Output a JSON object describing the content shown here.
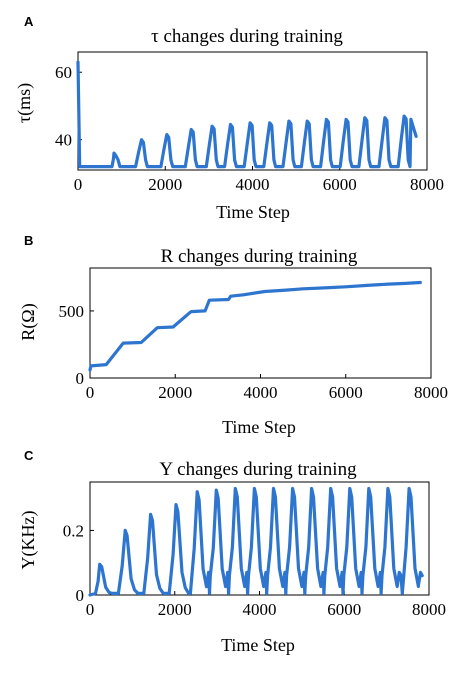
{
  "chart_data": [
    {
      "panel": "A",
      "type": "line",
      "title": "τ changes during training",
      "xlabel": "Time Step",
      "ylabel": "τ(ms)",
      "xlim": [
        0,
        8000
      ],
      "ylim": [
        31,
        66
      ],
      "xticks": [
        0,
        2000,
        4000,
        6000,
        8000
      ],
      "yticks": [
        40,
        60
      ],
      "grid": false,
      "color": "#2E75D0",
      "baseline": 32,
      "start_value": 63,
      "start_drop_step": 40,
      "peak_steps": [
        850,
        1480,
        2060,
        2620,
        3100,
        3520,
        3970,
        4420,
        4860,
        5280,
        5720,
        6170,
        6600,
        7060,
        7500
      ],
      "peak_values": [
        36,
        40,
        41.5,
        43,
        44,
        44.5,
        45,
        45,
        45.5,
        45.5,
        46,
        46,
        46.5,
        46.5,
        47
      ],
      "end_step": 7750,
      "end_value": 41
    },
    {
      "panel": "B",
      "type": "line",
      "title": "R changes during training",
      "xlabel": "Time Step",
      "ylabel": "R(Ω)",
      "xlim": [
        0,
        8000
      ],
      "ylim": [
        0,
        820
      ],
      "xticks": [
        0,
        2000,
        4000,
        6000,
        8000
      ],
      "yticks": [
        0,
        500
      ],
      "grid": false,
      "color": "#2E75D0",
      "x": [
        0,
        20,
        380,
        780,
        1200,
        1580,
        1950,
        2350,
        2380,
        2700,
        2800,
        3250,
        3300,
        3600,
        4100,
        4600,
        5000,
        5500,
        6000,
        6500,
        7000,
        7400,
        7750
      ],
      "y": [
        60,
        90,
        100,
        260,
        265,
        375,
        380,
        490,
        495,
        500,
        580,
        585,
        610,
        620,
        645,
        655,
        665,
        672,
        680,
        690,
        700,
        705,
        712
      ]
    },
    {
      "panel": "C",
      "type": "line",
      "title": "Y changes during training",
      "xlabel": "Time Step",
      "ylabel": "Y(KHz)",
      "xlim": [
        0,
        8000
      ],
      "ylim": [
        0,
        0.35
      ],
      "xticks": [
        0,
        2000,
        4000,
        6000,
        8000
      ],
      "yticks": [
        0,
        0.2
      ],
      "grid": false,
      "color": "#2E75D0",
      "peak_steps": [
        250,
        850,
        1450,
        2050,
        2550,
        3000,
        3450,
        3900,
        4350,
        4800,
        5250,
        5700,
        6150,
        6600,
        7050,
        7550
      ],
      "peak_values": [
        0.095,
        0.2,
        0.25,
        0.28,
        0.32,
        0.325,
        0.33,
        0.33,
        0.33,
        0.33,
        0.33,
        0.33,
        0.33,
        0.33,
        0.33,
        0.33
      ],
      "end_step": 7750,
      "end_value": 0.03
    }
  ]
}
